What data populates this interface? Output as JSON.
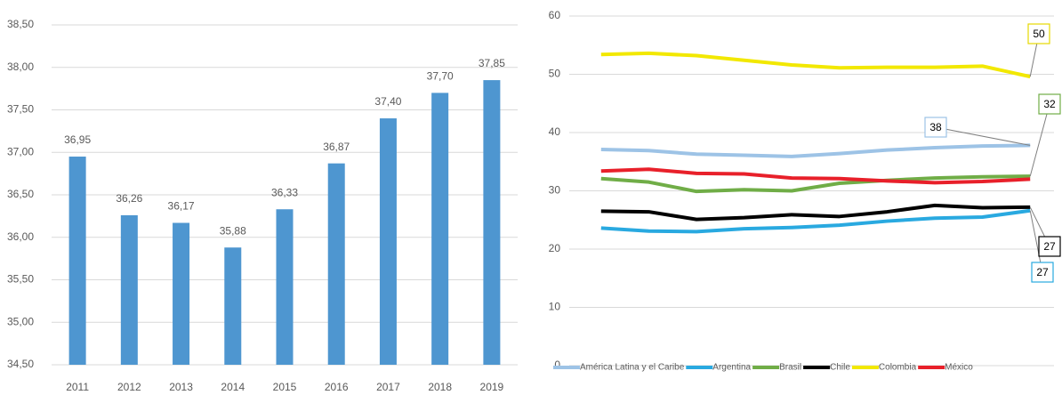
{
  "chart_data": [
    {
      "type": "bar",
      "categories": [
        "2011",
        "2012",
        "2013",
        "2014",
        "2015",
        "2016",
        "2017",
        "2018",
        "2019"
      ],
      "values": [
        36.95,
        36.26,
        36.17,
        35.88,
        36.33,
        36.87,
        37.4,
        37.7,
        37.85
      ],
      "value_labels": [
        "36,95",
        "36,26",
        "36,17",
        "35,88",
        "36,33",
        "36,87",
        "37,40",
        "37,70",
        "37,85"
      ],
      "color": "#4e96d0",
      "ylim": [
        34.5,
        38.5
      ],
      "yticks": [
        {
          "value": 34.5,
          "label": "34,50"
        },
        {
          "value": 35,
          "label": "35,00"
        },
        {
          "value": 35.5,
          "label": "35,50"
        },
        {
          "value": 36,
          "label": "36,00"
        },
        {
          "value": 36.5,
          "label": "36,50"
        },
        {
          "value": 37,
          "label": "37,00"
        },
        {
          "value": 37.5,
          "label": "37,50"
        },
        {
          "value": 38,
          "label": "38,00"
        },
        {
          "value": 38.5,
          "label": "38,50"
        }
      ],
      "grid": true
    },
    {
      "type": "line",
      "categories": [
        null,
        null,
        null,
        null,
        null,
        null,
        null,
        null,
        null,
        null
      ],
      "series": [
        {
          "name": "América Latina y el Caribe",
          "color": "#9dc3e6",
          "values": [
            37.1,
            36.9,
            36.3,
            36.1,
            35.9,
            36.4,
            37.0,
            37.4,
            37.7,
            37.8
          ],
          "value_labels": [
            null,
            null,
            null,
            null,
            null,
            null,
            null,
            null,
            null,
            "38"
          ]
        },
        {
          "name": "Argentina",
          "color": "#29a9e0",
          "values": [
            23.6,
            23.1,
            23.0,
            23.5,
            23.7,
            24.1,
            24.8,
            25.3,
            25.5,
            26.6
          ],
          "value_labels": [
            null,
            null,
            null,
            null,
            null,
            null,
            null,
            null,
            null,
            "27"
          ]
        },
        {
          "name": "Brasil",
          "color": "#70ad47",
          "values": [
            32.1,
            31.5,
            29.9,
            30.2,
            30.0,
            31.3,
            31.8,
            32.2,
            32.4,
            32.5
          ],
          "value_labels": [
            null,
            null,
            null,
            null,
            null,
            null,
            null,
            null,
            null,
            "32"
          ]
        },
        {
          "name": "Chile",
          "color": "#000000",
          "values": [
            26.5,
            26.4,
            25.1,
            25.4,
            25.9,
            25.6,
            26.4,
            27.5,
            27.1,
            27.2
          ],
          "value_labels": [
            null,
            null,
            null,
            null,
            null,
            null,
            null,
            null,
            null,
            "27"
          ]
        },
        {
          "name": "Colombia",
          "color": "#f2e800",
          "values": [
            53.4,
            53.6,
            53.2,
            52.4,
            51.6,
            51.1,
            51.2,
            51.2,
            51.4,
            49.6
          ],
          "value_labels": [
            null,
            null,
            null,
            null,
            null,
            null,
            null,
            null,
            null,
            "50"
          ]
        },
        {
          "name": "México",
          "color": "#e8202a",
          "values": [
            33.4,
            33.7,
            33.0,
            32.9,
            32.2,
            32.1,
            31.7,
            31.4,
            31.6,
            32.0
          ]
        }
      ],
      "ylim": [
        0,
        60
      ],
      "yticks": [
        0,
        10,
        20,
        30,
        40,
        50,
        60
      ],
      "grid": true,
      "legend": "bottom"
    }
  ]
}
